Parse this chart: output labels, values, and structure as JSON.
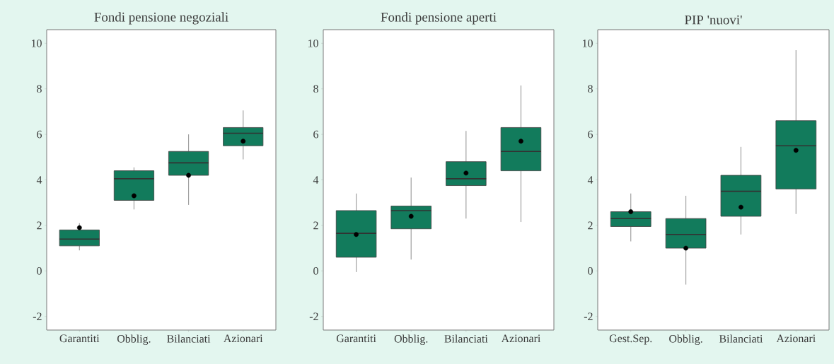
{
  "chart_data": [
    {
      "type": "box",
      "title": "Fondi pensione negoziali",
      "categories": [
        "Garantiti",
        "Obblig.",
        "Bilanciati",
        "Azionari"
      ],
      "color": "#127b5c",
      "ylim": [
        -2.6,
        10.6
      ],
      "yticks": [
        -2,
        0,
        2,
        4,
        6,
        8,
        10
      ],
      "boxes": [
        {
          "low": 0.9,
          "q1": 1.1,
          "median": 1.4,
          "q3": 1.8,
          "high": 2.1,
          "mean": 1.9
        },
        {
          "low": 2.7,
          "q1": 3.1,
          "median": 4.05,
          "q3": 4.4,
          "high": 4.55,
          "mean": 3.3
        },
        {
          "low": 2.9,
          "q1": 4.2,
          "median": 4.75,
          "q3": 5.25,
          "high": 6.0,
          "mean": 4.2
        },
        {
          "low": 4.9,
          "q1": 5.5,
          "median": 6.05,
          "q3": 6.3,
          "high": 7.05,
          "mean": 5.7
        }
      ]
    },
    {
      "type": "box",
      "title": "Fondi pensione aperti",
      "categories": [
        "Garantiti",
        "Obblig.",
        "Bilanciati",
        "Azionari"
      ],
      "color": "#127b5c",
      "ylim": [
        -2.6,
        10.6
      ],
      "yticks": [
        -2,
        0,
        2,
        4,
        6,
        8,
        10
      ],
      "boxes": [
        {
          "low": -0.05,
          "q1": 0.6,
          "median": 1.65,
          "q3": 2.65,
          "high": 3.4,
          "mean": 1.6
        },
        {
          "low": 0.5,
          "q1": 1.85,
          "median": 2.65,
          "q3": 2.85,
          "high": 4.1,
          "mean": 2.4
        },
        {
          "low": 2.3,
          "q1": 3.75,
          "median": 4.05,
          "q3": 4.8,
          "high": 6.15,
          "mean": 4.3
        },
        {
          "low": 2.15,
          "q1": 4.4,
          "median": 5.25,
          "q3": 6.3,
          "high": 8.15,
          "mean": 5.7
        }
      ]
    },
    {
      "type": "box",
      "title": "PIP 'nuovi'",
      "categories": [
        "Gest.Sep.",
        "Obblig.",
        "Bilanciati",
        "Azionari"
      ],
      "color": "#127b5c",
      "ylim": [
        -2.6,
        10.6
      ],
      "yticks": [
        -2,
        0,
        2,
        4,
        6,
        8,
        10
      ],
      "boxes": [
        {
          "low": 1.3,
          "q1": 1.95,
          "median": 2.3,
          "q3": 2.6,
          "high": 3.4,
          "mean": 2.6
        },
        {
          "low": -0.6,
          "q1": 1.0,
          "median": 1.6,
          "q3": 2.3,
          "high": 3.3,
          "mean": 1.0
        },
        {
          "low": 1.6,
          "q1": 2.4,
          "median": 3.5,
          "q3": 4.2,
          "high": 5.45,
          "mean": 2.8
        },
        {
          "low": 2.5,
          "q1": 3.6,
          "median": 5.5,
          "q3": 6.6,
          "high": 9.7,
          "mean": 5.3
        }
      ]
    }
  ]
}
